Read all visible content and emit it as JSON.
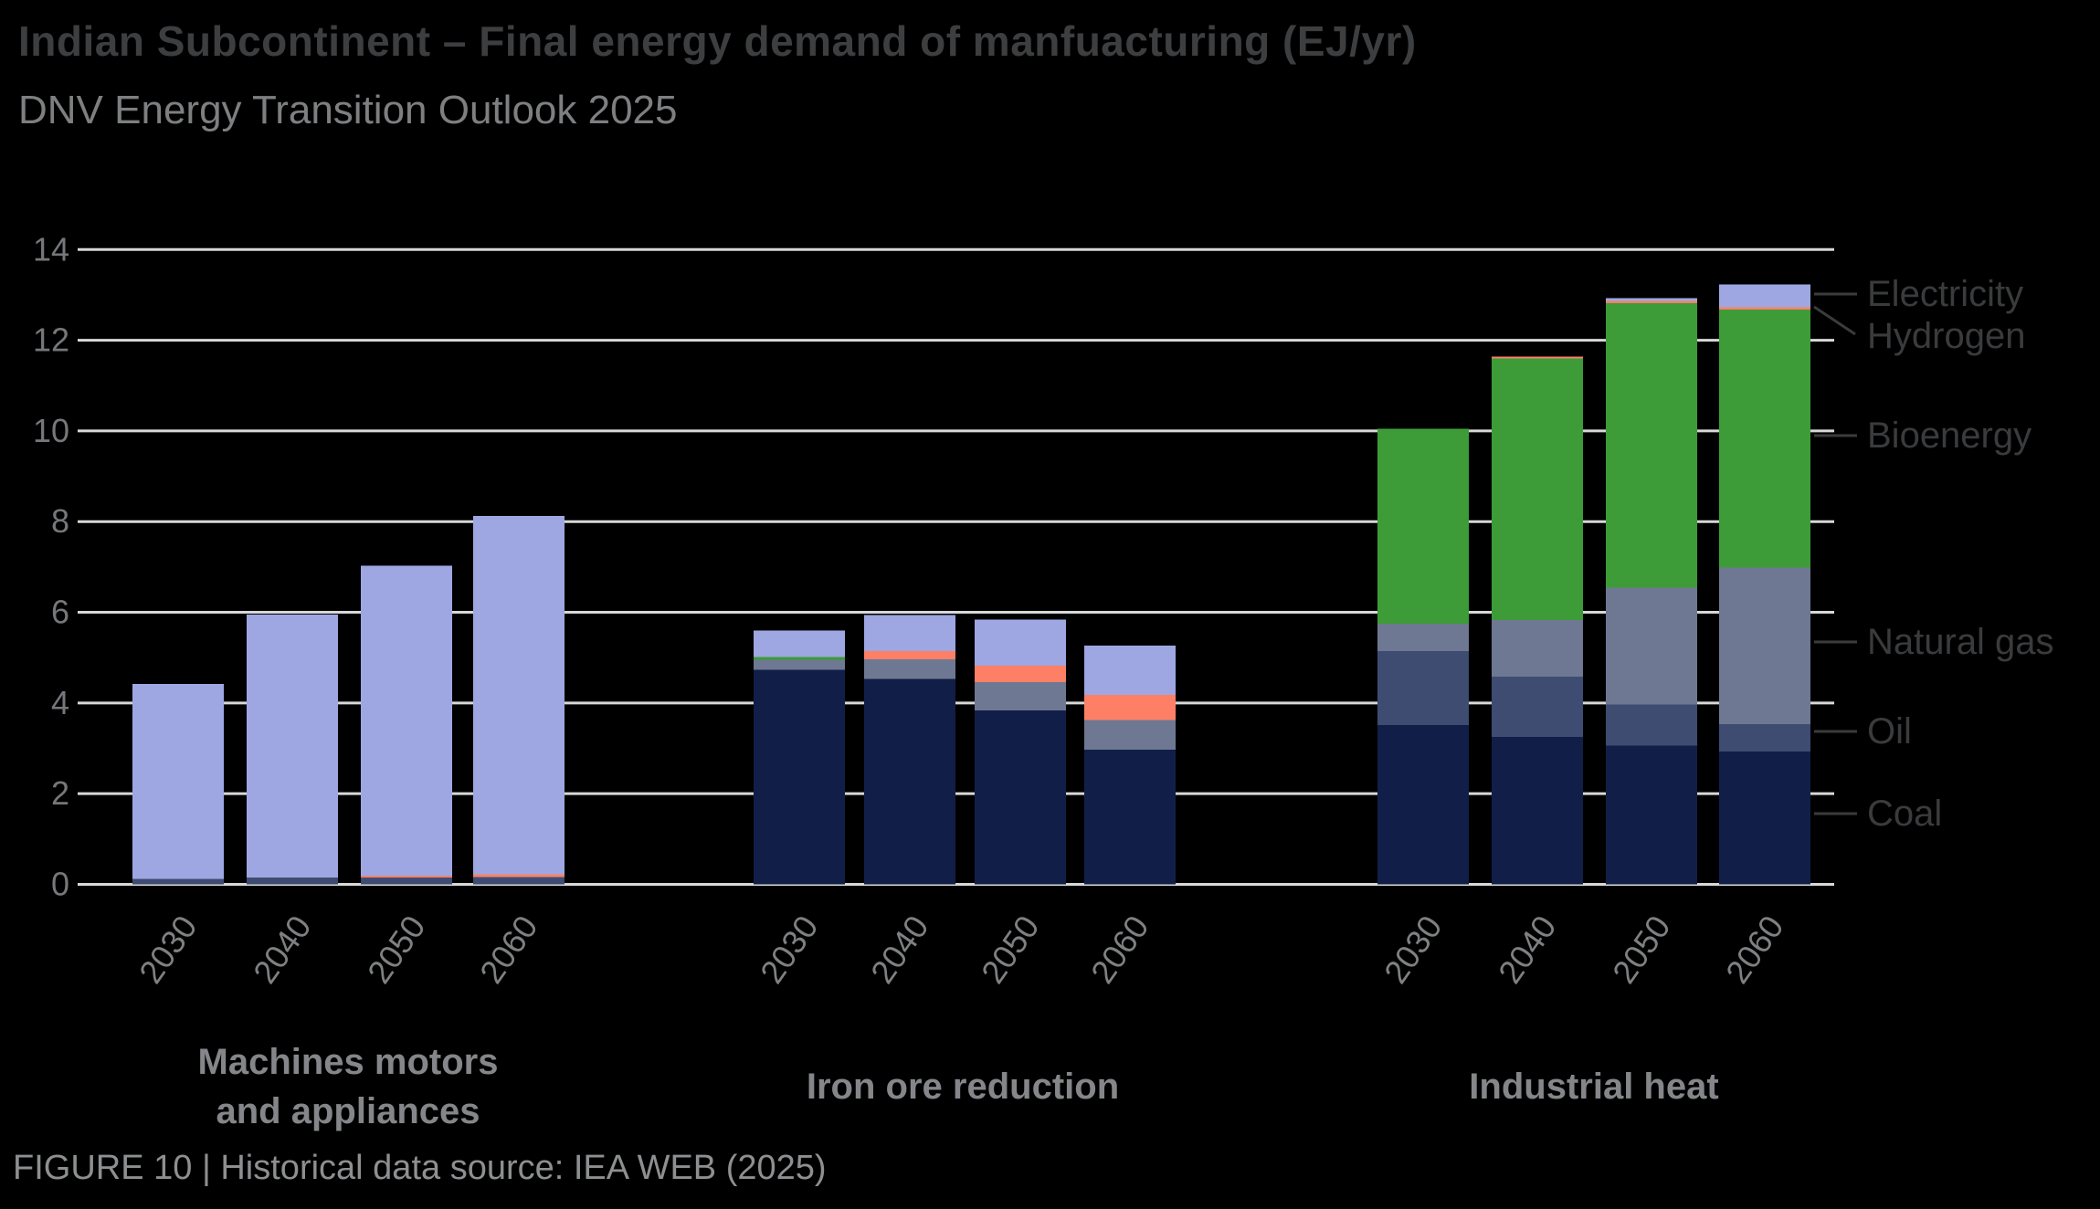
{
  "header": {
    "title": "Indian Subcontinent – Final energy demand of manfuacturing (EJ/yr)",
    "subtitle": "DNV Energy Transition Outlook 2025"
  },
  "footer": {
    "caption": "FIGURE 10 | Historical data source: IEA WEB (2025)"
  },
  "colors": {
    "background": "#000000",
    "gridline": "#d8d8d8",
    "axis_label": "#76777a",
    "year_label": "#7f8082",
    "group_label": "#858689",
    "legend_label": "#3a3b3d",
    "callout_line": "#3a3b3d",
    "series": {
      "Electricity": "#9ea7e1",
      "Hydrogen": "#fd8066",
      "Bioenergy": "#3d9c38",
      "Natural gas": "#6f7892",
      "Oil": "#3e4c72",
      "Coal": "#111f48"
    }
  },
  "chart_data": {
    "type": "bar",
    "stacked": true,
    "unit": "EJ/yr",
    "title": "Indian Subcontinent – Final energy demand of manfuacturing (EJ/yr)",
    "subtitle": "DNV Energy Transition Outlook 2025",
    "ylim": [
      0,
      14
    ],
    "yticks": [
      0,
      2,
      4,
      6,
      8,
      10,
      12,
      14
    ],
    "grid": true,
    "legend_position": "right",
    "series_order_bottom_to_top": [
      "Coal",
      "Oil",
      "Natural gas",
      "Bioenergy",
      "Hydrogen",
      "Electricity"
    ],
    "legend": [
      "Electricity",
      "Hydrogen",
      "Bioenergy",
      "Natural gas",
      "Oil",
      "Coal"
    ],
    "years": [
      "2030",
      "2040",
      "2050",
      "2060"
    ],
    "groups": [
      {
        "label": "Machines motors and appliances",
        "label_lines": [
          "Machines motors",
          "and appliances"
        ],
        "values": {
          "Coal": [
            0,
            0,
            0,
            0
          ],
          "Oil": [
            0.12,
            0.15,
            0.15,
            0.16
          ],
          "Natural gas": [
            0,
            0,
            0,
            0
          ],
          "Bioenergy": [
            0,
            0,
            0,
            0
          ],
          "Hydrogen": [
            0,
            0,
            0.04,
            0.06
          ],
          "Electricity": [
            4.3,
            5.8,
            6.84,
            7.91
          ]
        },
        "totals": [
          4.42,
          5.95,
          7.03,
          8.13
        ]
      },
      {
        "label": "Iron ore reduction",
        "label_lines": [
          "Iron ore reduction"
        ],
        "values": {
          "Coal": [
            4.73,
            4.53,
            3.84,
            2.97
          ],
          "Oil": [
            0,
            0,
            0,
            0
          ],
          "Natural gas": [
            0.22,
            0.43,
            0.62,
            0.65
          ],
          "Bioenergy": [
            0.06,
            0,
            0,
            0
          ],
          "Hydrogen": [
            0,
            0.18,
            0.36,
            0.56
          ],
          "Electricity": [
            0.59,
            0.8,
            1.02,
            1.09
          ]
        },
        "totals": [
          5.6,
          5.94,
          5.84,
          5.27
        ]
      },
      {
        "label": "Industrial heat",
        "label_lines": [
          "Industrial heat"
        ],
        "values": {
          "Coal": [
            3.51,
            3.25,
            3.06,
            2.93
          ],
          "Oil": [
            1.63,
            1.33,
            0.91,
            0.6
          ],
          "Natural gas": [
            0.61,
            1.25,
            2.57,
            3.46
          ],
          "Bioenergy": [
            4.3,
            5.77,
            6.28,
            5.69
          ],
          "Hydrogen": [
            0,
            0.04,
            0.05,
            0.05
          ],
          "Electricity": [
            0,
            0,
            0.06,
            0.5
          ]
        },
        "totals": [
          10.05,
          11.64,
          12.93,
          13.23
        ]
      }
    ]
  }
}
